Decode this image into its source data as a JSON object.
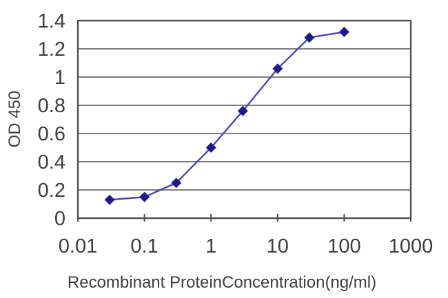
{
  "chart": {
    "background_color": "#ffffff",
    "plot_background_color": "#ffffff",
    "border_color": "#4f4f4f",
    "gridline_color": "#7d7d7d",
    "tick_text_color": "#3e3e3e",
    "line_color": "#4646c0",
    "marker_color": "#1b1b8e"
  },
  "chart_data": {
    "type": "line",
    "title": "",
    "xlabel": "Recombinant ProteinConcentration(ng/ml)",
    "ylabel": "OD 450",
    "x_scale": "log",
    "xlim": [
      0.01,
      1000
    ],
    "ylim": [
      0,
      1.4
    ],
    "x": [
      0.03,
      0.1,
      0.3,
      1,
      3,
      10,
      30,
      100
    ],
    "y": [
      0.13,
      0.15,
      0.25,
      0.5,
      0.76,
      1.06,
      1.28,
      1.32
    ],
    "x_tick_values": [
      0.01,
      0.1,
      1,
      10,
      100,
      1000
    ],
    "x_tick_labels": [
      "0.01",
      "0.1",
      "1",
      "10",
      "100",
      "1000"
    ],
    "y_tick_values": [
      0,
      0.2,
      0.4,
      0.6,
      0.8,
      1,
      1.2,
      1.4
    ],
    "y_tick_labels": [
      "0",
      "0.2",
      "0.4",
      "0.6",
      "0.8",
      "1",
      "1.2",
      "1.4"
    ],
    "grid": "horizontal",
    "legend": "none",
    "marker": "diamond"
  }
}
